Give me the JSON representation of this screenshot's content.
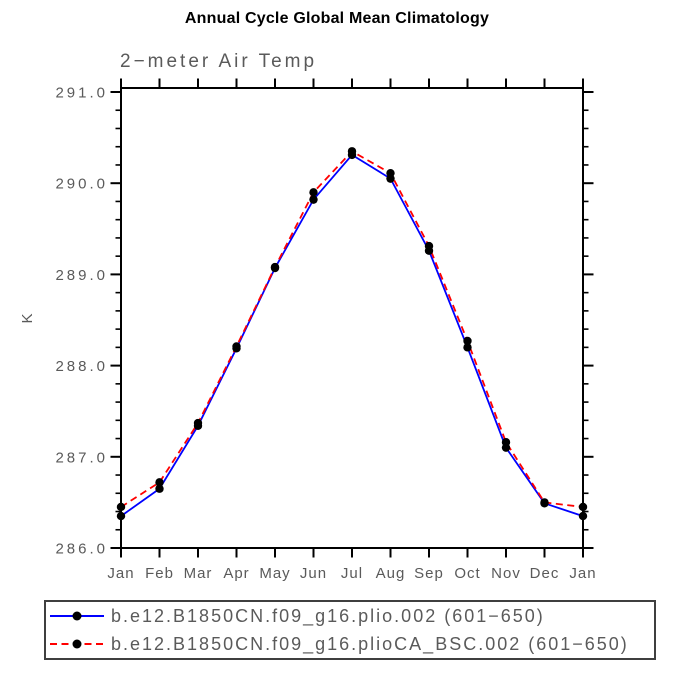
{
  "page": {
    "background": "#ffffff"
  },
  "chart_data": {
    "type": "line",
    "title": "Annual Cycle Global Mean Climatology",
    "subtitle": "2−meter Air Temp",
    "ylabel": "K",
    "xlabel": "",
    "categories": [
      "Jan",
      "Feb",
      "Mar",
      "Apr",
      "May",
      "Jun",
      "Jul",
      "Aug",
      "Sep",
      "Oct",
      "Nov",
      "Dec",
      "Jan"
    ],
    "y_ticks": [
      286.0,
      287.0,
      288.0,
      289.0,
      290.0,
      291.0
    ],
    "y_tick_labels": [
      "286.0",
      "287.0",
      "288.0",
      "289.0",
      "290.0",
      "291.0"
    ],
    "y_minor_step": 0.2,
    "ylim": [
      286.0,
      291.04
    ],
    "grid": false,
    "legend_position": "bottom",
    "axis_color": "#000000",
    "label_color": "#5a5a5a",
    "title_color": "#000000",
    "series": [
      {
        "name": "b.e12.B1850CN.f09_g16.plio.002 (601−650)",
        "color": "#0000ff",
        "line_style": "solid",
        "marker": "circle",
        "marker_color": "#000000",
        "values": [
          286.35,
          286.65,
          287.34,
          288.19,
          289.07,
          289.82,
          290.31,
          290.05,
          289.26,
          288.2,
          287.1,
          286.49,
          286.35
        ]
      },
      {
        "name": "b.e12.B1850CN.f09_g16.plioCA_BSC.002 (601−650)",
        "color": "#ff0000",
        "line_style": "dashed",
        "marker": "circle",
        "marker_color": "#000000",
        "values": [
          286.45,
          286.72,
          287.37,
          288.21,
          289.08,
          289.9,
          290.35,
          290.11,
          289.31,
          288.27,
          287.16,
          286.5,
          286.45
        ]
      }
    ]
  }
}
